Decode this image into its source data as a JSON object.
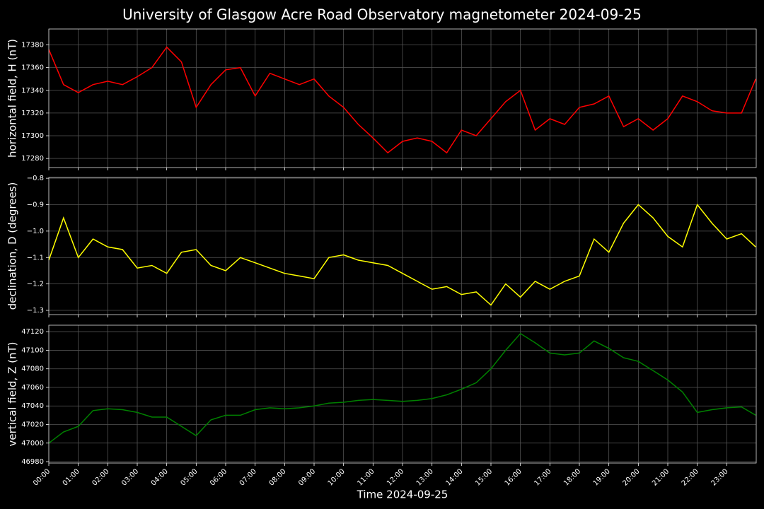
{
  "title": "University of Glasgow Acre Road Observatory magnetometer 2024-09-25",
  "chart_data": [
    {
      "type": "line",
      "ylabel": "horizontal field, H (nT)",
      "color": "#ff0000",
      "grid": true,
      "x": [
        "00:00",
        "00:30",
        "01:00",
        "01:30",
        "02:00",
        "02:30",
        "03:00",
        "03:30",
        "04:00",
        "04:30",
        "05:00",
        "05:30",
        "06:00",
        "06:30",
        "07:00",
        "07:30",
        "08:00",
        "08:30",
        "09:00",
        "09:30",
        "10:00",
        "10:30",
        "11:00",
        "11:30",
        "12:00",
        "12:30",
        "13:00",
        "13:30",
        "14:00",
        "14:30",
        "15:00",
        "15:30",
        "16:00",
        "16:30",
        "17:00",
        "17:30",
        "18:00",
        "18:30",
        "19:00",
        "19:30",
        "20:00",
        "20:30",
        "21:00",
        "21:30",
        "22:00",
        "22:30",
        "23:00",
        "23:30",
        "23:59"
      ],
      "values": [
        17376,
        17345,
        17338,
        17345,
        17348,
        17345,
        17352,
        17360,
        17378,
        17365,
        17325,
        17345,
        17358,
        17360,
        17335,
        17355,
        17350,
        17345,
        17350,
        17335,
        17325,
        17310,
        17298,
        17285,
        17295,
        17298,
        17295,
        17285,
        17305,
        17300,
        17315,
        17330,
        17340,
        17305,
        17315,
        17310,
        17325,
        17328,
        17335,
        17308,
        17315,
        17305,
        17315,
        17335,
        17330,
        17322,
        17320,
        17320,
        17350
      ],
      "xlim": [
        "00:00",
        "24:00"
      ],
      "ylim": [
        17272,
        17394
      ],
      "yticks": [
        17280,
        17300,
        17320,
        17340,
        17360,
        17380
      ]
    },
    {
      "type": "line",
      "ylabel": "declination, D (degrees)",
      "color": "#ffff00",
      "grid": true,
      "x": [
        "00:00",
        "00:30",
        "01:00",
        "01:30",
        "02:00",
        "02:30",
        "03:00",
        "03:30",
        "04:00",
        "04:30",
        "05:00",
        "05:30",
        "06:00",
        "06:30",
        "07:00",
        "07:30",
        "08:00",
        "08:30",
        "09:00",
        "09:30",
        "10:00",
        "10:30",
        "11:00",
        "11:30",
        "12:00",
        "12:30",
        "13:00",
        "13:30",
        "14:00",
        "14:30",
        "15:00",
        "15:30",
        "16:00",
        "16:30",
        "17:00",
        "17:30",
        "18:00",
        "18:30",
        "19:00",
        "19:30",
        "20:00",
        "20:30",
        "21:00",
        "21:30",
        "22:00",
        "22:30",
        "23:00",
        "23:30",
        "23:59"
      ],
      "values": [
        -1.11,
        -0.95,
        -1.1,
        -1.03,
        -1.06,
        -1.07,
        -1.14,
        -1.13,
        -1.16,
        -1.08,
        -1.07,
        -1.13,
        -1.15,
        -1.1,
        -1.12,
        -1.14,
        -1.16,
        -1.17,
        -1.18,
        -1.1,
        -1.09,
        -1.11,
        -1.12,
        -1.13,
        -1.16,
        -1.19,
        -1.22,
        -1.21,
        -1.24,
        -1.23,
        -1.28,
        -1.2,
        -1.25,
        -1.19,
        -1.22,
        -1.19,
        -1.17,
        -1.03,
        -1.08,
        -0.97,
        -0.9,
        -0.95,
        -1.02,
        -1.06,
        -0.9,
        -0.97,
        -1.03,
        -1.01,
        -1.06
      ],
      "xlim": [
        "00:00",
        "24:00"
      ],
      "ylim": [
        -1.316,
        -0.797
      ],
      "yticks": [
        {
          "value": -1.3,
          "label": "−1.3"
        },
        {
          "value": -1.2,
          "label": "−1.2"
        },
        {
          "value": -1.1,
          "label": "−1.1"
        },
        {
          "value": -1.0,
          "label": "−1.0"
        },
        {
          "value": -0.9,
          "label": "−0.9"
        },
        {
          "value": -0.8,
          "label": "−0.8"
        }
      ]
    },
    {
      "type": "line",
      "ylabel": "vertical field, Z (nT)",
      "xlabel": "Time 2024-09-25",
      "color": "#008000",
      "grid": true,
      "x": [
        "00:00",
        "00:30",
        "01:00",
        "01:30",
        "02:00",
        "02:30",
        "03:00",
        "03:30",
        "04:00",
        "04:30",
        "05:00",
        "05:30",
        "06:00",
        "06:30",
        "07:00",
        "07:30",
        "08:00",
        "08:30",
        "09:00",
        "09:30",
        "10:00",
        "10:30",
        "11:00",
        "11:30",
        "12:00",
        "12:30",
        "13:00",
        "13:30",
        "14:00",
        "14:30",
        "15:00",
        "15:30",
        "16:00",
        "16:30",
        "17:00",
        "17:30",
        "18:00",
        "18:30",
        "19:00",
        "19:30",
        "20:00",
        "20:30",
        "21:00",
        "21:30",
        "22:00",
        "22:30",
        "23:00",
        "23:30",
        "23:59"
      ],
      "values": [
        47000,
        47012,
        47018,
        47035,
        47037,
        47036,
        47033,
        47028,
        47028,
        47018,
        47008,
        47025,
        47030,
        47030,
        47036,
        47038,
        47037,
        47038,
        47040,
        47043,
        47044,
        47046,
        47047,
        47046,
        47045,
        47046,
        47048,
        47052,
        47058,
        47065,
        47080,
        47100,
        47118,
        47108,
        47097,
        47095,
        47097,
        47110,
        47102,
        47092,
        47088,
        47078,
        47068,
        47055,
        47033,
        47036,
        47038,
        47039,
        47030
      ],
      "xlim": [
        "00:00",
        "24:00"
      ],
      "ylim": [
        46978.5,
        47127
      ],
      "yticks": [
        46980,
        47000,
        47020,
        47040,
        47060,
        47080,
        47100,
        47120
      ],
      "xticks": [
        "00:00",
        "01:00",
        "02:00",
        "03:00",
        "04:00",
        "05:00",
        "06:00",
        "07:00",
        "08:00",
        "09:00",
        "10:00",
        "11:00",
        "12:00",
        "13:00",
        "14:00",
        "15:00",
        "16:00",
        "17:00",
        "18:00",
        "19:00",
        "20:00",
        "21:00",
        "22:00",
        "23:00"
      ]
    }
  ]
}
